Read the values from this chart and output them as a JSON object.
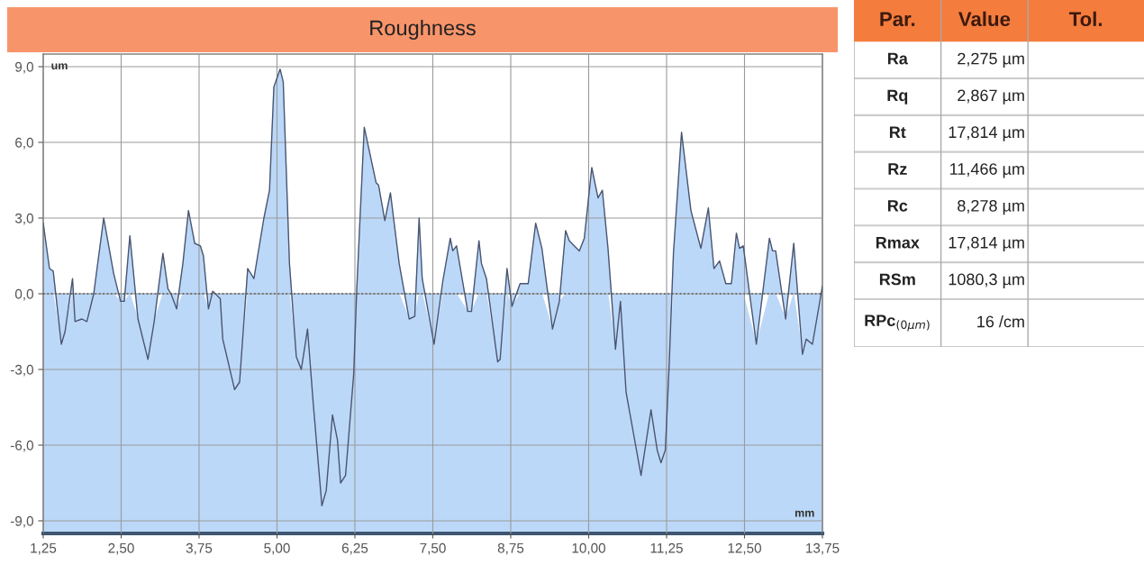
{
  "chart_data": [
    {
      "type": "area",
      "title": "Roughness",
      "xlabel": "mm",
      "ylabel": "um",
      "x": [
        1.25,
        1.35,
        1.41,
        1.54,
        1.6,
        1.72,
        1.76,
        1.87,
        1.95,
        2.06,
        2.22,
        2.38,
        2.49,
        2.55,
        2.64,
        2.77,
        2.93,
        3.03,
        3.17,
        3.25,
        3.3,
        3.39,
        3.49,
        3.58,
        3.68,
        3.77,
        3.82,
        3.9,
        3.97,
        4.09,
        4.13,
        4.32,
        4.4,
        4.53,
        4.63,
        4.79,
        4.88,
        4.95,
        5.05,
        5.1,
        5.2,
        5.31,
        5.39,
        5.49,
        5.58,
        5.72,
        5.79,
        5.89,
        5.97,
        6.02,
        6.1,
        6.23,
        6.28,
        6.4,
        6.59,
        6.63,
        6.73,
        6.82,
        6.96,
        7.12,
        7.21,
        7.28,
        7.33,
        7.52,
        7.66,
        7.78,
        7.82,
        7.88,
        8.06,
        8.12,
        8.24,
        8.28,
        8.36,
        8.54,
        8.58,
        8.69,
        8.77,
        8.9,
        9.03,
        9.15,
        9.25,
        9.42,
        9.53,
        9.63,
        9.69,
        9.85,
        9.93,
        10.05,
        10.15,
        10.22,
        10.31,
        10.43,
        10.51,
        10.6,
        10.84,
        11.0,
        11.1,
        11.16,
        11.23,
        11.29,
        11.36,
        11.49,
        11.64,
        11.8,
        11.92,
        12.01,
        12.1,
        12.2,
        12.29,
        12.37,
        12.42,
        12.48,
        12.69,
        12.9,
        12.95,
        13.0,
        13.16,
        13.29,
        13.43,
        13.49,
        13.59,
        13.75
      ],
      "series": [
        {
          "color": "#bcd8f8",
          "values": [
            2.8,
            1.0,
            0.9,
            -2.0,
            -1.5,
            0.6,
            -1.1,
            -1.0,
            -1.1,
            0.0,
            3.0,
            0.8,
            -0.3,
            -0.3,
            2.3,
            -1.0,
            -2.6,
            -1.1,
            1.6,
            0.2,
            0.0,
            -0.6,
            1.2,
            3.3,
            2.0,
            1.9,
            1.5,
            -0.6,
            0.1,
            -0.2,
            -1.8,
            -3.8,
            -3.5,
            1.0,
            0.6,
            3.0,
            4.1,
            8.2,
            8.9,
            8.4,
            1.2,
            -2.5,
            -3.0,
            -1.4,
            -4.3,
            -8.4,
            -7.8,
            -4.8,
            -5.8,
            -7.5,
            -7.2,
            -3.2,
            0.2,
            6.6,
            4.4,
            4.3,
            2.9,
            4.0,
            1.2,
            -1.0,
            -0.9,
            3.0,
            0.6,
            -2.0,
            0.5,
            2.2,
            1.7,
            1.9,
            -0.7,
            -0.7,
            2.1,
            1.2,
            0.6,
            -2.7,
            -2.6,
            1.0,
            -0.5,
            0.4,
            0.4,
            2.8,
            1.8,
            -1.4,
            -0.3,
            2.5,
            2.1,
            1.7,
            2.2,
            5.0,
            3.8,
            4.1,
            1.8,
            -2.2,
            -0.3,
            -3.9,
            -7.2,
            -4.6,
            -6.2,
            -6.7,
            -6.2,
            -2.9,
            1.6,
            6.4,
            3.3,
            1.8,
            3.4,
            1.0,
            1.3,
            0.4,
            0.4,
            2.4,
            1.8,
            1.9,
            -2.0,
            2.2,
            1.7,
            1.7,
            -1.0,
            2.0,
            -2.4,
            -1.8,
            -2.0,
            0.3
          ]
        }
      ],
      "xlim": [
        1.25,
        13.75
      ],
      "ylim": [
        -9.5,
        9.5
      ],
      "xticks": [
        {
          "value": 1.25,
          "label": "1,25"
        },
        {
          "value": 2.5,
          "label": "2,50"
        },
        {
          "value": 3.75,
          "label": "3,75"
        },
        {
          "value": 5.0,
          "label": "5,00"
        },
        {
          "value": 6.25,
          "label": "6,25"
        },
        {
          "value": 7.5,
          "label": "7,50"
        },
        {
          "value": 8.75,
          "label": "8,75"
        },
        {
          "value": 10.0,
          "label": "10,00"
        },
        {
          "value": 11.25,
          "label": "11,25"
        },
        {
          "value": 12.5,
          "label": "12,50"
        },
        {
          "value": 13.75,
          "label": "13,75"
        }
      ],
      "yticks": [
        {
          "value": 9,
          "label": "9,0"
        },
        {
          "value": 6,
          "label": "6,0"
        },
        {
          "value": 3,
          "label": "3,0"
        },
        {
          "value": 0,
          "label": "0,0"
        },
        {
          "value": -3,
          "label": "-3,0"
        },
        {
          "value": -6,
          "label": "-6,0"
        },
        {
          "value": -9,
          "label": "-9,0"
        }
      ],
      "ref_lines": [
        {
          "axis": "y",
          "value": 0,
          "color": "#555555",
          "line_style": "dotted"
        }
      ],
      "grid": true,
      "line_style": "solid",
      "marker": "none"
    },
    {
      "type": "other",
      "annotations": [
        "Par.",
        "Value",
        "Tol.",
        "Ra",
        "2,275 µm",
        "Rq",
        "2,867 µm",
        "Rt",
        "17,814 µm",
        "Rz",
        "11,466 µm",
        "Rc",
        "8,278 µm",
        "Rmax",
        "17,814 µm",
        "RSm",
        "1080,3 µm",
        "RPc$_{(0µm)}$",
        "16 /cm"
      ]
    }
  ]
}
